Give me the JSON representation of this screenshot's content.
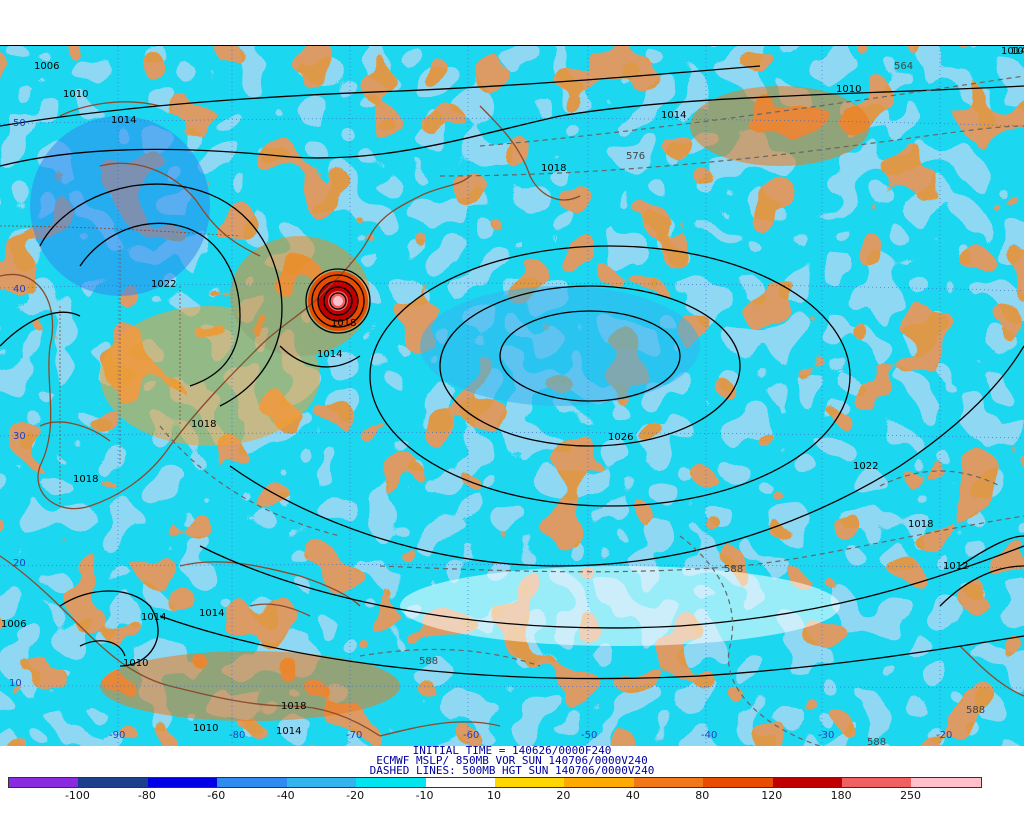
{
  "header": {
    "line1": "INITIAL TIME = 140626/0000F240",
    "line2": "ECMWF MSLP/ 850MB VOR SUN 140706/0000V240",
    "line3": "DASHED LINES: 500MB HGT SUN 140706/0000V240"
  },
  "colorbar": {
    "colors": [
      "#8a2be2",
      "#1a3f8c",
      "#0000e6",
      "#2e8bf0",
      "#34b4ee",
      "#00e5ef",
      "#ffffff",
      "#ffd700",
      "#ffaa00",
      "#f07818",
      "#e84c00",
      "#c00000",
      "#f06060",
      "#ffc0cb"
    ],
    "labels": [
      "-100",
      "-80",
      "-60",
      "-40",
      "-20",
      "-10",
      "10",
      "20",
      "40",
      "80",
      "120",
      "180",
      "250"
    ]
  },
  "isobar_labels": [
    {
      "text": "1006"
    },
    {
      "text": "1010"
    },
    {
      "text": "1014"
    },
    {
      "text": "1022"
    },
    {
      "text": "1014"
    },
    {
      "text": "1018"
    },
    {
      "text": "1018"
    },
    {
      "text": "1018"
    },
    {
      "text": "1014"
    },
    {
      "text": "1026"
    },
    {
      "text": "1022"
    },
    {
      "text": "1018"
    },
    {
      "text": "1014"
    },
    {
      "text": "1018"
    },
    {
      "text": "1010"
    },
    {
      "text": "1014"
    },
    {
      "text": "1010"
    },
    {
      "text": "1014"
    },
    {
      "text": "1010"
    },
    {
      "text": "1006"
    },
    {
      "text": "1010"
    },
    {
      "text": "1014"
    },
    {
      "text": "1018"
    },
    {
      "text": "1012"
    }
  ],
  "height_labels": [
    {
      "text": "564"
    },
    {
      "text": "576"
    },
    {
      "text": "588"
    },
    {
      "text": "588"
    },
    {
      "text": "588"
    },
    {
      "text": "588"
    }
  ],
  "lat_labels": [
    "50",
    "40",
    "30",
    "20",
    "10"
  ],
  "lon_labels": [
    "-90",
    "-80",
    "-70",
    "-60",
    "-50",
    "-40",
    "-30",
    "-20"
  ]
}
